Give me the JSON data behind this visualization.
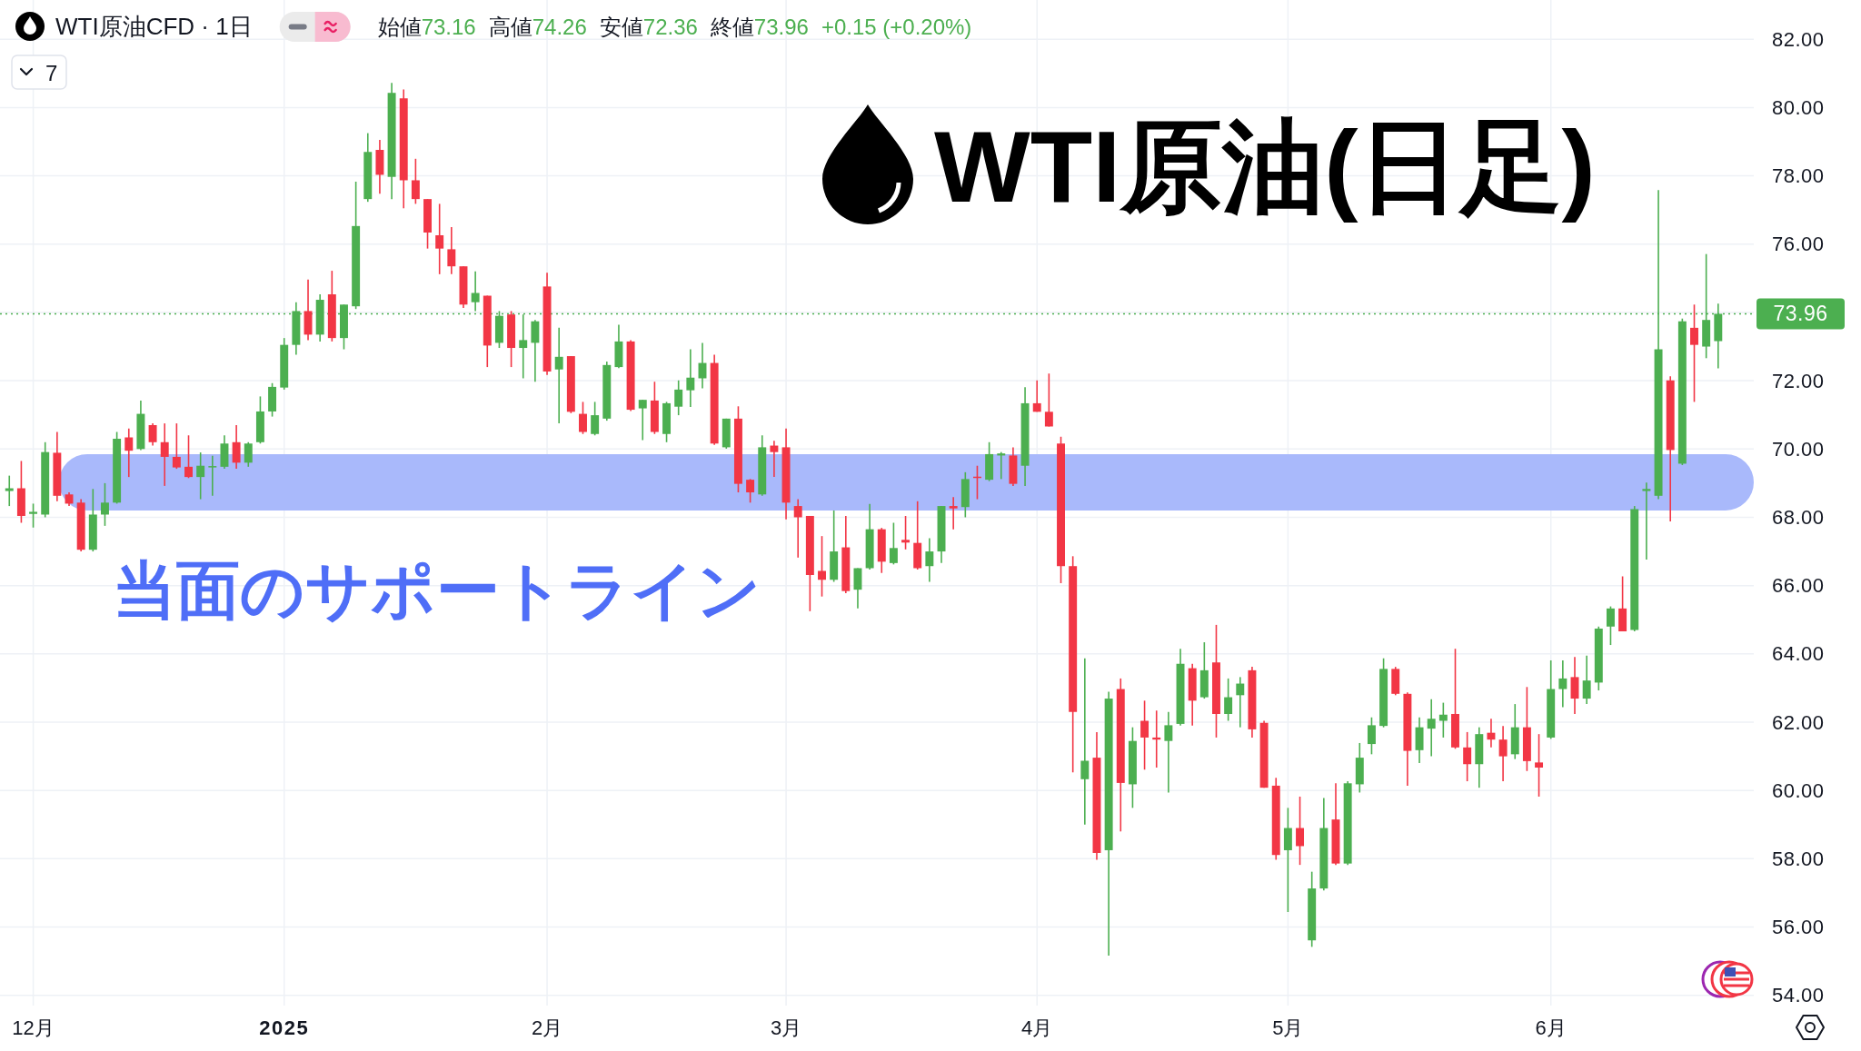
{
  "chart_data": {
    "type": "candlestick",
    "title": "WTI原油(日足)",
    "subtitle": "WTI原油CFD · 1日",
    "annotations": [
      "7",
      "始値73.16",
      "高値74.26",
      "安値72.36",
      "終値73.96",
      "+0.15 (+0.20%)"
    ],
    "categories": [
      null,
      null,
      "12月",
      null,
      null,
      null,
      null,
      null,
      null,
      null,
      null,
      null,
      null,
      null,
      null,
      null,
      null,
      null,
      null,
      null,
      null,
      null,
      null,
      "2025",
      null,
      null,
      null,
      null,
      null,
      null,
      null,
      null,
      null,
      null,
      null,
      null,
      null,
      null,
      null,
      null,
      null,
      null,
      null,
      null,
      null,
      "2月",
      null,
      null,
      null,
      null,
      null,
      null,
      null,
      null,
      null,
      null,
      null,
      null,
      null,
      null,
      null,
      null,
      null,
      null,
      null,
      "3月",
      null,
      null,
      null,
      null,
      null,
      null,
      null,
      null,
      null,
      null,
      null,
      null,
      null,
      null,
      null,
      null,
      null,
      null,
      null,
      null,
      "4月",
      null,
      null,
      null,
      null,
      null,
      null,
      null,
      null,
      null,
      null,
      null,
      null,
      null,
      null,
      null,
      null,
      null,
      null,
      null,
      null,
      "5月",
      null,
      null,
      null,
      null,
      null,
      null,
      null,
      null,
      null,
      null,
      null,
      null,
      null,
      null,
      null,
      null,
      null,
      null,
      null,
      null,
      null,
      "6月",
      null,
      null,
      null,
      null,
      null,
      null,
      null,
      null,
      null,
      null,
      null,
      null,
      null,
      null
    ],
    "ohlc": [
      [
        68.77,
        69.22,
        68.33,
        68.85
      ],
      [
        68.85,
        69.65,
        67.84,
        68.04
      ],
      [
        68.1,
        68.4,
        67.7,
        68.16
      ],
      [
        68.08,
        70.2,
        68.0,
        69.91
      ],
      [
        69.89,
        70.5,
        68.47,
        68.63
      ],
      [
        68.67,
        68.73,
        68.33,
        68.4
      ],
      [
        68.43,
        68.53,
        67.0,
        67.05
      ],
      [
        67.05,
        68.83,
        67.0,
        68.08
      ],
      [
        68.08,
        69.0,
        67.75,
        68.43
      ],
      [
        68.43,
        70.5,
        68.4,
        70.3
      ],
      [
        70.34,
        70.6,
        69.18,
        69.95
      ],
      [
        70.0,
        71.42,
        69.97,
        71.03
      ],
      [
        70.7,
        70.75,
        70.1,
        70.2
      ],
      [
        70.2,
        70.75,
        68.92,
        69.77
      ],
      [
        69.77,
        70.75,
        69.42,
        69.46
      ],
      [
        69.48,
        70.4,
        69.15,
        69.18
      ],
      [
        69.18,
        69.9,
        68.53,
        69.51
      ],
      [
        69.46,
        69.8,
        68.63,
        69.5
      ],
      [
        69.48,
        70.4,
        69.42,
        70.16
      ],
      [
        70.2,
        70.7,
        69.42,
        69.6
      ],
      [
        69.6,
        70.2,
        69.48,
        70.16
      ],
      [
        70.2,
        71.54,
        70.16,
        71.1
      ],
      [
        71.1,
        71.93,
        70.95,
        71.82
      ],
      [
        71.8,
        73.25,
        71.74,
        73.05
      ],
      [
        73.05,
        74.3,
        72.76,
        74.04
      ],
      [
        74.04,
        74.96,
        73.19,
        73.35
      ],
      [
        73.35,
        74.53,
        73.15,
        74.37
      ],
      [
        74.53,
        75.22,
        73.15,
        73.25
      ],
      [
        73.25,
        74.23,
        72.92,
        74.23
      ],
      [
        74.18,
        77.83,
        74.1,
        76.53
      ],
      [
        77.32,
        79.25,
        77.24,
        78.7
      ],
      [
        78.76,
        79.05,
        77.48,
        78.03
      ],
      [
        77.97,
        80.72,
        77.32,
        80.43
      ],
      [
        80.27,
        80.53,
        77.05,
        77.87
      ],
      [
        77.87,
        78.5,
        77.18,
        77.32
      ],
      [
        77.32,
        77.32,
        75.87,
        76.34
      ],
      [
        76.26,
        77.18,
        75.12,
        75.87
      ],
      [
        75.85,
        76.5,
        75.12,
        75.35
      ],
      [
        75.35,
        75.35,
        74.13,
        74.23
      ],
      [
        74.3,
        75.2,
        74.04,
        74.57
      ],
      [
        74.49,
        74.49,
        72.4,
        73.03
      ],
      [
        73.11,
        74.04,
        72.96,
        73.9
      ],
      [
        73.94,
        74.04,
        72.4,
        72.96
      ],
      [
        72.96,
        73.94,
        72.07,
        73.19
      ],
      [
        73.11,
        73.78,
        71.97,
        73.74
      ],
      [
        74.76,
        75.16,
        72.17,
        72.27
      ],
      [
        72.33,
        73.55,
        70.75,
        72.7
      ],
      [
        72.72,
        72.72,
        71.05,
        71.09
      ],
      [
        71.03,
        71.38,
        70.44,
        70.5
      ],
      [
        70.44,
        71.38,
        70.4,
        70.99
      ],
      [
        70.89,
        72.56,
        70.83,
        72.46
      ],
      [
        72.4,
        73.64,
        72.37,
        73.15
      ],
      [
        73.15,
        73.19,
        71.11,
        71.15
      ],
      [
        71.19,
        71.44,
        70.26,
        71.44
      ],
      [
        71.42,
        71.97,
        70.44,
        70.5
      ],
      [
        70.44,
        71.38,
        70.2,
        71.34
      ],
      [
        71.24,
        72.01,
        70.99,
        71.74
      ],
      [
        71.72,
        72.92,
        71.23,
        72.09
      ],
      [
        72.07,
        73.11,
        71.78,
        72.52
      ],
      [
        72.52,
        72.76,
        70.12,
        70.16
      ],
      [
        70.05,
        70.89,
        70.01,
        70.89
      ],
      [
        70.89,
        71.25,
        68.73,
        68.98
      ],
      [
        69.1,
        69.12,
        68.43,
        68.73
      ],
      [
        68.67,
        70.4,
        68.63,
        70.05
      ],
      [
        70.1,
        70.24,
        69.18,
        69.91
      ],
      [
        70.05,
        70.6,
        67.94,
        68.43
      ],
      [
        68.33,
        68.53,
        66.82,
        68.0
      ],
      [
        68.04,
        68.04,
        65.25,
        66.31
      ],
      [
        66.43,
        67.45,
        65.68,
        66.17
      ],
      [
        66.17,
        68.2,
        66.11,
        67.0
      ],
      [
        67.12,
        68.04,
        65.78,
        65.84
      ],
      [
        65.88,
        66.51,
        65.33,
        66.51
      ],
      [
        66.51,
        68.39,
        66.47,
        67.65
      ],
      [
        67.65,
        67.69,
        66.37,
        66.7
      ],
      [
        66.66,
        67.84,
        66.62,
        67.1
      ],
      [
        67.34,
        68.04,
        67.06,
        67.26
      ],
      [
        67.25,
        68.47,
        66.47,
        66.51
      ],
      [
        66.57,
        67.39,
        66.11,
        67.0
      ],
      [
        67.0,
        68.33,
        66.66,
        68.33
      ],
      [
        68.33,
        68.59,
        67.65,
        68.26
      ],
      [
        68.3,
        69.32,
        68.0,
        69.12
      ],
      [
        69.19,
        69.51,
        68.53,
        69.15
      ],
      [
        69.1,
        70.2,
        69.06,
        69.85
      ],
      [
        69.81,
        69.91,
        69.12,
        69.87
      ],
      [
        69.81,
        70.05,
        68.92,
        68.98
      ],
      [
        69.51,
        71.81,
        68.92,
        71.34
      ],
      [
        71.34,
        72.01,
        71.09,
        71.09
      ],
      [
        71.09,
        72.21,
        70.66,
        70.66
      ],
      [
        70.16,
        70.36,
        66.07,
        66.57
      ],
      [
        66.57,
        66.86,
        60.53,
        62.3
      ],
      [
        60.33,
        63.87,
        59.0,
        60.87
      ],
      [
        60.96,
        61.71,
        57.97,
        58.17
      ],
      [
        58.25,
        62.89,
        55.16,
        62.69
      ],
      [
        62.97,
        63.28,
        58.8,
        60.22
      ],
      [
        60.18,
        61.85,
        59.49,
        61.45
      ],
      [
        62.04,
        62.63,
        60.61,
        61.55
      ],
      [
        61.55,
        62.34,
        60.67,
        61.49
      ],
      [
        61.45,
        62.3,
        59.94,
        61.91
      ],
      [
        61.95,
        64.15,
        61.9,
        63.71
      ],
      [
        63.58,
        63.71,
        61.9,
        62.63
      ],
      [
        62.73,
        64.34,
        62.69,
        63.52
      ],
      [
        63.75,
        64.85,
        61.55,
        62.24
      ],
      [
        62.24,
        63.28,
        62.04,
        62.73
      ],
      [
        62.79,
        63.32,
        61.85,
        63.13
      ],
      [
        63.52,
        63.62,
        61.55,
        61.79
      ],
      [
        61.98,
        62.04,
        60.08,
        60.08
      ],
      [
        60.14,
        60.37,
        57.97,
        58.11
      ],
      [
        58.25,
        59.49,
        56.44,
        58.9
      ],
      [
        58.9,
        59.82,
        57.82,
        58.37
      ],
      [
        55.61,
        57.62,
        55.42,
        57.13
      ],
      [
        57.13,
        59.78,
        57.07,
        58.9
      ],
      [
        59.15,
        60.21,
        57.82,
        57.86
      ],
      [
        57.86,
        60.27,
        57.82,
        60.21
      ],
      [
        60.18,
        61.39,
        59.94,
        60.96
      ],
      [
        61.36,
        62.14,
        61.06,
        61.91
      ],
      [
        61.89,
        63.87,
        61.85,
        63.56
      ],
      [
        63.56,
        63.62,
        62.79,
        62.83
      ],
      [
        62.83,
        62.87,
        60.14,
        61.16
      ],
      [
        61.18,
        62.14,
        60.8,
        61.85
      ],
      [
        61.81,
        62.67,
        61.0,
        62.1
      ],
      [
        62.04,
        62.57,
        61.55,
        62.22
      ],
      [
        62.24,
        64.15,
        61.22,
        61.26
      ],
      [
        61.26,
        61.71,
        60.27,
        60.77
      ],
      [
        60.77,
        61.85,
        60.08,
        61.65
      ],
      [
        61.69,
        62.1,
        61.26,
        61.49
      ],
      [
        61.49,
        61.89,
        60.27,
        61.0
      ],
      [
        61.06,
        62.53,
        60.92,
        61.85
      ],
      [
        61.85,
        63.03,
        60.57,
        60.86
      ],
      [
        60.82,
        61.65,
        59.82,
        60.67
      ],
      [
        61.55,
        63.81,
        61.51,
        62.97
      ],
      [
        62.97,
        63.81,
        62.44,
        63.28
      ],
      [
        63.32,
        63.91,
        62.24,
        62.69
      ],
      [
        62.69,
        63.95,
        62.53,
        63.22
      ],
      [
        63.16,
        64.8,
        62.93,
        64.74
      ],
      [
        64.8,
        65.39,
        64.26,
        65.33
      ],
      [
        65.33,
        66.27,
        64.66,
        64.66
      ],
      [
        64.7,
        68.33,
        64.66,
        68.24
      ],
      [
        68.77,
        69.02,
        66.76,
        68.83
      ],
      [
        68.63,
        77.58,
        68.53,
        72.92
      ],
      [
        72.01,
        72.13,
        67.88,
        69.97
      ],
      [
        69.57,
        73.82,
        69.53,
        73.74
      ],
      [
        73.55,
        74.23,
        71.38,
        73.05
      ],
      [
        73.0,
        75.71,
        72.66,
        73.78
      ],
      [
        73.16,
        74.26,
        72.36,
        73.96
      ]
    ],
    "colors": [
      "#4caf50",
      "#f23645",
      "#4caf50",
      "#4caf50",
      "#f23645",
      "#f23645",
      "#f23645",
      "#4caf50",
      "#4caf50",
      "#4caf50",
      "#f23645",
      "#4caf50",
      "#f23645",
      "#f23645",
      "#f23645",
      "#f23645",
      "#4caf50",
      "#4caf50",
      "#4caf50",
      "#f23645",
      "#4caf50",
      "#4caf50",
      "#4caf50",
      "#4caf50",
      "#4caf50",
      "#f23645",
      "#4caf50",
      "#f23645",
      "#4caf50",
      "#4caf50",
      "#4caf50",
      "#f23645",
      "#4caf50",
      "#f23645",
      "#f23645",
      "#f23645",
      "#f23645",
      "#f23645",
      "#f23645",
      "#4caf50",
      "#f23645",
      "#4caf50",
      "#f23645",
      "#4caf50",
      "#4caf50",
      "#f23645",
      "#4caf50",
      "#f23645",
      "#f23645",
      "#4caf50",
      "#4caf50",
      "#4caf50",
      "#f23645",
      "#4caf50",
      "#f23645",
      "#4caf50",
      "#4caf50",
      "#4caf50",
      "#4caf50",
      "#f23645",
      "#4caf50",
      "#f23645",
      "#f23645",
      "#4caf50",
      "#f23645",
      "#f23645",
      "#f23645",
      "#f23645",
      "#f23645",
      "#4caf50",
      "#f23645",
      "#4caf50",
      "#4caf50",
      "#f23645",
      "#4caf50",
      "#f23645",
      "#f23645",
      "#4caf50",
      "#4caf50",
      "#f23645",
      "#4caf50",
      "#f23645",
      "#4caf50",
      "#4caf50",
      "#f23645",
      "#4caf50",
      "#f23645",
      "#f23645",
      "#f23645",
      "#f23645",
      "#4caf50",
      "#f23645",
      "#4caf50",
      "#f23645",
      "#4caf50",
      "#f23645",
      "#f23645",
      "#4caf50",
      "#4caf50",
      "#f23645",
      "#4caf50",
      "#f23645",
      "#4caf50",
      "#4caf50",
      "#f23645",
      "#f23645",
      "#f23645",
      "#4caf50",
      "#f23645",
      "#4caf50",
      "#4caf50",
      "#f23645",
      "#4caf50",
      "#4caf50",
      "#4caf50",
      "#4caf50",
      "#f23645",
      "#f23645",
      "#4caf50",
      "#4caf50",
      "#4caf50",
      "#f23645",
      "#f23645",
      "#4caf50",
      "#f23645",
      "#f23645",
      "#4caf50",
      "#f23645",
      "#f23645",
      "#4caf50",
      "#4caf50",
      "#f23645",
      "#4caf50",
      "#4caf50",
      "#4caf50",
      "#f23645",
      "#4caf50",
      "#4caf50",
      "#4caf50",
      "#f23645",
      "#4caf50",
      "#f23645",
      "#4caf50",
      "#4caf50"
    ],
    "ylim": [
      53.7,
      83.15
    ],
    "yticks": [
      {
        "value": 54,
        "label": "54.00"
      },
      {
        "value": 56,
        "label": "56.00"
      },
      {
        "value": 58,
        "label": "58.00"
      },
      {
        "value": 60,
        "label": "60.00"
      },
      {
        "value": 62,
        "label": "62.00"
      },
      {
        "value": 64,
        "label": "64.00"
      },
      {
        "value": 66,
        "label": "66.00"
      },
      {
        "value": 68,
        "label": "68.00"
      },
      {
        "value": 70,
        "label": "70.00"
      },
      {
        "value": 72,
        "label": "72.00"
      },
      {
        "value": 74,
        "label": null
      },
      {
        "value": 76,
        "label": "76.00"
      },
      {
        "value": 78,
        "label": "78.00"
      },
      {
        "value": 80,
        "label": "80.00"
      },
      {
        "value": 82,
        "label": "82.00"
      }
    ],
    "grid": true,
    "ref_lines": [
      {
        "axis": "y",
        "value": 73.96,
        "label": "73.96",
        "color": "#4caf50",
        "line_style": "dotted"
      }
    ],
    "bands": [
      {
        "axis": "y",
        "from": 68.2,
        "to": 69.85,
        "label": "当面のサポートライン",
        "color": "#a9b9fb"
      }
    ]
  }
}
